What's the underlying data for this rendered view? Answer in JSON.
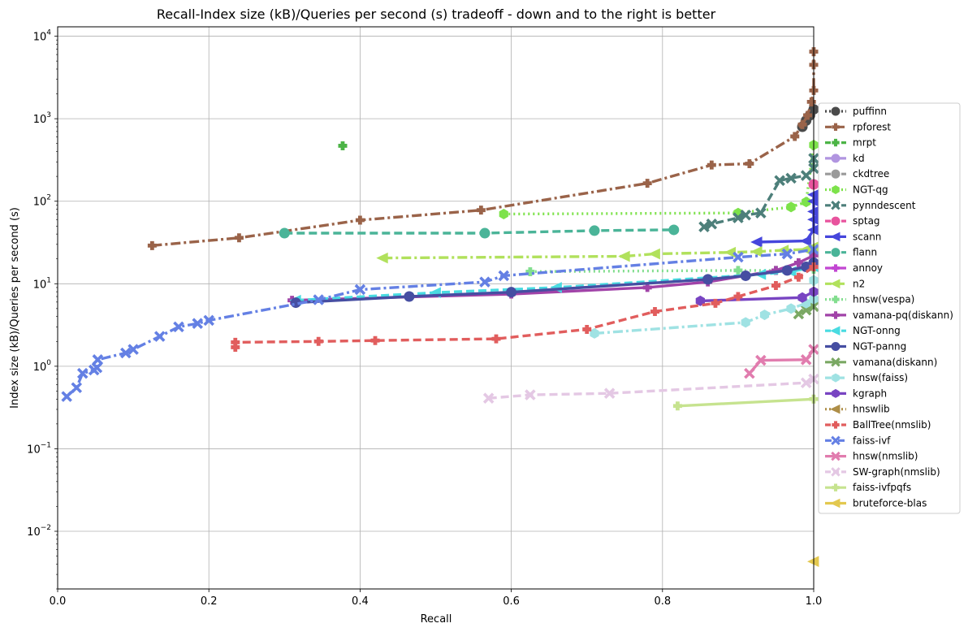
{
  "chart_data": {
    "type": "line",
    "title": "Recall-Index size (kB)/Queries per second (s) tradeoff - down and to the right is better",
    "xlabel": "Recall",
    "ylabel": "Index size (kB)/Queries per second (s)",
    "xlim": [
      0.0,
      1.0
    ],
    "ylim": [
      0.002,
      13000
    ],
    "yscale": "log",
    "grid": true,
    "legend_position": "right",
    "x_ticks": [
      "0.0",
      "0.2",
      "0.4",
      "0.6",
      "0.8",
      "1.0"
    ],
    "y_ticks": [
      {
        "base": "10",
        "exp": "−2"
      },
      {
        "base": "10",
        "exp": "−1"
      },
      {
        "base": "10",
        "exp": "0"
      },
      {
        "base": "10",
        "exp": "1"
      },
      {
        "base": "10",
        "exp": "2"
      },
      {
        "base": "10",
        "exp": "3"
      },
      {
        "base": "10",
        "exp": "4"
      }
    ],
    "series": [
      {
        "name": "puffinn",
        "color": "#4a4a4a",
        "marker": "circle",
        "dash": "dot",
        "points": [
          [
            0.985,
            800
          ],
          [
            0.99,
            950
          ],
          [
            0.995,
            1100
          ],
          [
            1.0,
            1300
          ]
        ]
      },
      {
        "name": "rpforest",
        "color": "#9a6349",
        "marker": "plus",
        "dash": "dashdot",
        "points": [
          [
            0.125,
            29
          ],
          [
            0.24,
            36
          ],
          [
            0.4,
            59
          ],
          [
            0.56,
            78
          ],
          [
            0.78,
            165
          ],
          [
            0.865,
            275
          ],
          [
            0.915,
            285
          ],
          [
            0.975,
            610
          ],
          [
            0.985,
            850
          ],
          [
            0.992,
            1100
          ],
          [
            0.997,
            1600
          ],
          [
            1.0,
            2200
          ],
          [
            1.0,
            4500
          ],
          [
            1.0,
            6500
          ]
        ]
      },
      {
        "name": "mrpt",
        "color": "#4cb446",
        "marker": "plus",
        "dash": "dash",
        "points": [
          [
            0.377,
            470
          ]
        ]
      },
      {
        "name": "kd",
        "color": "#b195e0",
        "marker": "circle",
        "dash": "solid",
        "points": []
      },
      {
        "name": "ckdtree",
        "color": "#9a9a9a",
        "marker": "circle",
        "dash": "dash",
        "points": []
      },
      {
        "name": "NGT-qg",
        "color": "#7de24a",
        "marker": "hexagon",
        "dash": "dot",
        "points": [
          [
            0.59,
            70
          ],
          [
            0.9,
            72
          ],
          [
            0.97,
            85
          ],
          [
            0.99,
            98
          ],
          [
            1.0,
            480
          ]
        ]
      },
      {
        "name": "pynndescent",
        "color": "#4d7f7a",
        "marker": "x",
        "dash": "dash",
        "points": [
          [
            0.855,
            49
          ],
          [
            0.865,
            53
          ],
          [
            0.9,
            63
          ],
          [
            0.91,
            68
          ],
          [
            0.93,
            72
          ],
          [
            0.955,
            178
          ],
          [
            0.97,
            190
          ],
          [
            0.99,
            205
          ],
          [
            1.0,
            250
          ],
          [
            1.0,
            330
          ]
        ]
      },
      {
        "name": "sptag",
        "color": "#e8539d",
        "marker": "circle",
        "dash": "dash",
        "points": [
          [
            1.0,
            160
          ]
        ]
      },
      {
        "name": "scann",
        "color": "#4646dc",
        "marker": "triangle-left",
        "dash": "solid",
        "points": [
          [
            0.925,
            32
          ],
          [
            0.99,
            33
          ],
          [
            1.0,
            45
          ],
          [
            1.0,
            60
          ],
          [
            1.0,
            75
          ],
          [
            1.0,
            100
          ],
          [
            1.0,
            120
          ]
        ]
      },
      {
        "name": "flann",
        "color": "#4ab498",
        "marker": "circle",
        "dash": "dash",
        "points": [
          [
            0.3,
            41
          ],
          [
            0.565,
            41
          ],
          [
            0.71,
            44
          ],
          [
            0.815,
            45
          ]
        ]
      },
      {
        "name": "annoy",
        "color": "#c246d2",
        "marker": "plus",
        "dash": "solid",
        "points": []
      },
      {
        "name": "n2",
        "color": "#b1e15c",
        "marker": "triangle-left",
        "dash": "dashdot",
        "points": [
          [
            0.43,
            20.5
          ],
          [
            0.75,
            21.5
          ],
          [
            0.79,
            23
          ],
          [
            0.89,
            24
          ],
          [
            0.925,
            24.5
          ],
          [
            0.96,
            25.5
          ],
          [
            0.99,
            26
          ],
          [
            1.0,
            28
          ]
        ]
      },
      {
        "name": "hnsw(vespa)",
        "color": "#83de8f",
        "marker": "plus",
        "dash": "dot",
        "points": [
          [
            0.625,
            14
          ],
          [
            0.9,
            14.5
          ],
          [
            0.95,
            14.5
          ],
          [
            1.0,
            15
          ]
        ]
      },
      {
        "name": "vamana-pq(diskann)",
        "color": "#a143a8",
        "marker": "plus",
        "dash": "solid",
        "points": [
          [
            0.31,
            6.3
          ],
          [
            0.6,
            7.5
          ],
          [
            0.78,
            9
          ],
          [
            0.86,
            10.5
          ],
          [
            0.95,
            14.5
          ],
          [
            0.98,
            18
          ],
          [
            1.0,
            22
          ]
        ]
      },
      {
        "name": "NGT-onng",
        "color": "#49dbe1",
        "marker": "triangle-left",
        "dash": "dash",
        "points": [
          [
            0.315,
            6.3
          ],
          [
            0.5,
            7.8
          ],
          [
            0.66,
            9
          ],
          [
            0.93,
            13
          ],
          [
            0.97,
            14
          ],
          [
            1.0,
            16
          ]
        ]
      },
      {
        "name": "NGT-panng",
        "color": "#464ea2",
        "marker": "circle",
        "dash": "solid",
        "points": [
          [
            0.315,
            5.9
          ],
          [
            0.465,
            7
          ],
          [
            0.6,
            7.9
          ],
          [
            0.86,
            11.3
          ],
          [
            0.91,
            12.5
          ],
          [
            0.965,
            14.5
          ],
          [
            0.99,
            16
          ],
          [
            1.0,
            18
          ]
        ]
      },
      {
        "name": "vamana(diskann)",
        "color": "#7aa863",
        "marker": "x",
        "dash": "solid",
        "points": [
          [
            0.98,
            4.3
          ],
          [
            0.99,
            4.8
          ],
          [
            1.0,
            5.3
          ]
        ]
      },
      {
        "name": "hnsw(faiss)",
        "color": "#9fe2e3",
        "marker": "hexagon",
        "dash": "dashdot",
        "points": [
          [
            0.71,
            2.5
          ],
          [
            0.91,
            3.4
          ],
          [
            0.935,
            4.2
          ],
          [
            0.97,
            5
          ],
          [
            0.99,
            5.8
          ],
          [
            1.0,
            6.5
          ],
          [
            1.0,
            11
          ]
        ]
      },
      {
        "name": "kgraph",
        "color": "#7844c2",
        "marker": "hexagon",
        "dash": "solid",
        "points": [
          [
            0.85,
            6.2
          ],
          [
            0.985,
            6.8
          ],
          [
            1.0,
            8
          ]
        ]
      },
      {
        "name": "hnswlib",
        "color": "#ae8e47",
        "marker": "triangle-left",
        "dash": "dot",
        "points": []
      },
      {
        "name": "BallTree(nmslib)",
        "color": "#e15d5d",
        "marker": "plus",
        "dash": "dash",
        "points": [
          [
            0.235,
            1.7
          ],
          [
            0.235,
            1.95
          ],
          [
            0.345,
            2
          ],
          [
            0.42,
            2.05
          ],
          [
            0.58,
            2.15
          ],
          [
            0.7,
            2.8
          ],
          [
            0.79,
            4.6
          ],
          [
            0.87,
            5.8
          ],
          [
            0.9,
            7
          ],
          [
            0.95,
            9.5
          ],
          [
            0.98,
            12
          ],
          [
            1.0,
            16
          ]
        ]
      },
      {
        "name": "faiss-ivf",
        "color": "#6480e4",
        "marker": "x",
        "dash": "dashdot",
        "points": [
          [
            0.012,
            0.43
          ],
          [
            0.025,
            0.55
          ],
          [
            0.033,
            0.82
          ],
          [
            0.048,
            0.9
          ],
          [
            0.052,
            0.96
          ],
          [
            0.053,
            1.2
          ],
          [
            0.09,
            1.45
          ],
          [
            0.1,
            1.6
          ],
          [
            0.135,
            2.3
          ],
          [
            0.16,
            3
          ],
          [
            0.185,
            3.3
          ],
          [
            0.2,
            3.6
          ],
          [
            0.345,
            6.4
          ],
          [
            0.4,
            8.5
          ],
          [
            0.565,
            10.5
          ],
          [
            0.59,
            12.5
          ],
          [
            0.9,
            21
          ],
          [
            0.965,
            23
          ],
          [
            1.0,
            26
          ]
        ]
      },
      {
        "name": "hnsw(nmslib)",
        "color": "#e17cae",
        "marker": "x",
        "dash": "solid",
        "points": [
          [
            0.915,
            0.82
          ],
          [
            0.93,
            1.18
          ],
          [
            0.99,
            1.2
          ],
          [
            1.0,
            1.6
          ]
        ]
      },
      {
        "name": "SW-graph(nmslib)",
        "color": "#e4c8e4",
        "marker": "x",
        "dash": "dash",
        "points": [
          [
            0.57,
            0.41
          ],
          [
            0.625,
            0.45
          ],
          [
            0.73,
            0.47
          ],
          [
            0.99,
            0.63
          ],
          [
            1.0,
            0.7
          ]
        ]
      },
      {
        "name": "faiss-ivfpqfs",
        "color": "#c6e38f",
        "marker": "plus",
        "dash": "solid",
        "points": [
          [
            0.82,
            0.33
          ],
          [
            1.0,
            0.4
          ]
        ]
      },
      {
        "name": "bruteforce-blas",
        "color": "#e3c84f",
        "marker": "triangle-left",
        "dash": "solid",
        "points": [
          [
            1.0,
            0.0043
          ]
        ]
      }
    ]
  }
}
